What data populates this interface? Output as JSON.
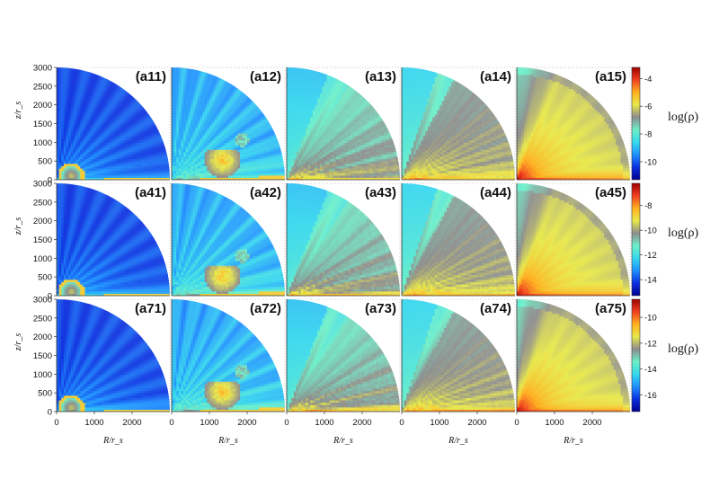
{
  "chart_data": {
    "type": "heatmap",
    "layout": {
      "rows": 3,
      "cols": 5
    },
    "xlabel": "R/r_s",
    "ylabel": "z/r_s",
    "x_ticks": [
      "0",
      "1000",
      "2000"
    ],
    "x_tick_values": [
      0,
      1000,
      2000
    ],
    "y_ticks": [
      "0",
      "500",
      "1000",
      "1500",
      "2000",
      "2500",
      "3000"
    ],
    "y_tick_values": [
      0,
      500,
      1000,
      1500,
      2000,
      2500,
      3000
    ],
    "domain_radius": 3000,
    "colormap": [
      "#000090",
      "#0a2fe0",
      "#1e90ff",
      "#37d7ee",
      "#6cf0c8",
      "#8c8c8c",
      "#e8e84a",
      "#ffb020",
      "#f04020",
      "#a00000"
    ],
    "panels": [
      {
        "label": "(a11)",
        "row": 0,
        "col": 0,
        "style": 0
      },
      {
        "label": "(a12)",
        "row": 0,
        "col": 1,
        "style": 1
      },
      {
        "label": "(a13)",
        "row": 0,
        "col": 2,
        "style": 2
      },
      {
        "label": "(a14)",
        "row": 0,
        "col": 3,
        "style": 3
      },
      {
        "label": "(a15)",
        "row": 0,
        "col": 4,
        "style": 4
      },
      {
        "label": "(a41)",
        "row": 1,
        "col": 0,
        "style": 0
      },
      {
        "label": "(a42)",
        "row": 1,
        "col": 1,
        "style": 1
      },
      {
        "label": "(a43)",
        "row": 1,
        "col": 2,
        "style": 2
      },
      {
        "label": "(a44)",
        "row": 1,
        "col": 3,
        "style": 3
      },
      {
        "label": "(a45)",
        "row": 1,
        "col": 4,
        "style": 4
      },
      {
        "label": "(a71)",
        "row": 2,
        "col": 0,
        "style": 0
      },
      {
        "label": "(a72)",
        "row": 2,
        "col": 1,
        "style": 1
      },
      {
        "label": "(a73)",
        "row": 2,
        "col": 2,
        "style": 2
      },
      {
        "label": "(a74)",
        "row": 2,
        "col": 3,
        "style": 3
      },
      {
        "label": "(a75)",
        "row": 2,
        "col": 4,
        "style": 4
      }
    ],
    "colorbars": [
      {
        "label": "log(ρ)",
        "ticks": [
          "-4",
          "-6",
          "-8",
          "-10"
        ],
        "tick_values": [
          -4,
          -6,
          -8,
          -10
        ],
        "range": [
          -11.3,
          -3.2
        ]
      },
      {
        "label": "log(ρ)",
        "ticks": [
          "-8",
          "-10",
          "-12",
          "-14"
        ],
        "tick_values": [
          -8,
          -10,
          -12,
          -14
        ],
        "range": [
          -15.3,
          -6.2
        ]
      },
      {
        "label": "log(ρ)",
        "ticks": [
          "-10",
          "-12",
          "-14",
          "-16"
        ],
        "tick_values": [
          -10,
          -12,
          -14,
          -16
        ],
        "range": [
          -17.3,
          -8.6
        ]
      }
    ]
  }
}
